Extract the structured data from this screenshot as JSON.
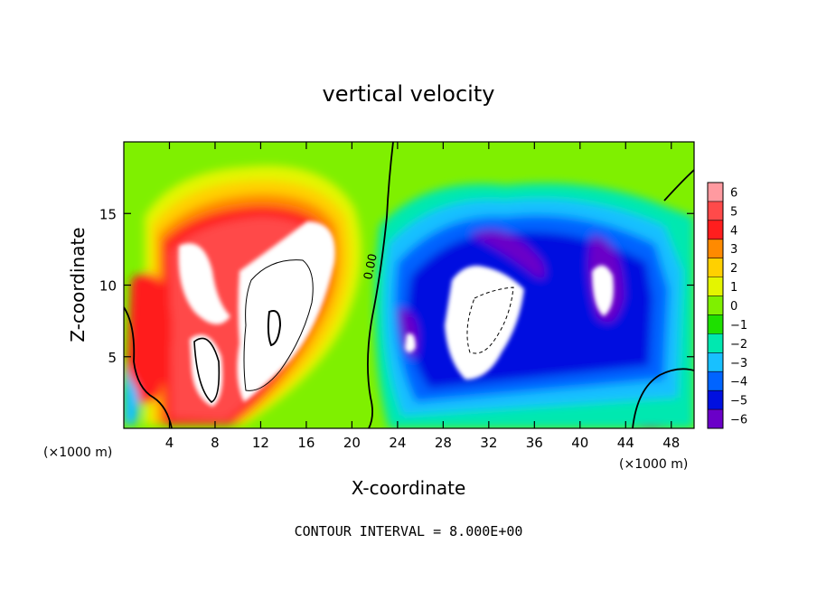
{
  "chart_data": {
    "type": "heatmap",
    "title": "vertical velocity",
    "xlabel": "X-coordinate",
    "ylabel": "Z-coordinate",
    "x_unit_left": "(×1000 m)",
    "x_unit_right": "(×1000 m)",
    "xlim": [
      0,
      50
    ],
    "ylim": [
      0,
      20
    ],
    "x_ticks": [
      4,
      8,
      12,
      16,
      20,
      24,
      28,
      32,
      36,
      40,
      44,
      48
    ],
    "y_ticks": [
      5,
      10,
      15
    ],
    "colorbar": {
      "levels": [
        6,
        5,
        4,
        3,
        2,
        1,
        0,
        -1,
        -2,
        -3,
        -4,
        -5,
        -6
      ],
      "level_labels": [
        "6",
        "5",
        "4",
        "3",
        "2",
        "1",
        "0",
        "−1",
        "−2",
        "−3",
        "−4",
        "−5",
        "−6"
      ],
      "colors": [
        "#ff9aa0",
        "#ff4a4a",
        "#ff1e1e",
        "#ff8a00",
        "#ffd000",
        "#e4f500",
        "#7ff000",
        "#1ee000",
        "#00e8b0",
        "#18c0ff",
        "#0064ff",
        "#0010e0",
        "#6a00c8"
      ]
    },
    "contour_label": "0.00",
    "footer": "CONTOUR INTERVAL = 8.000E+00"
  }
}
